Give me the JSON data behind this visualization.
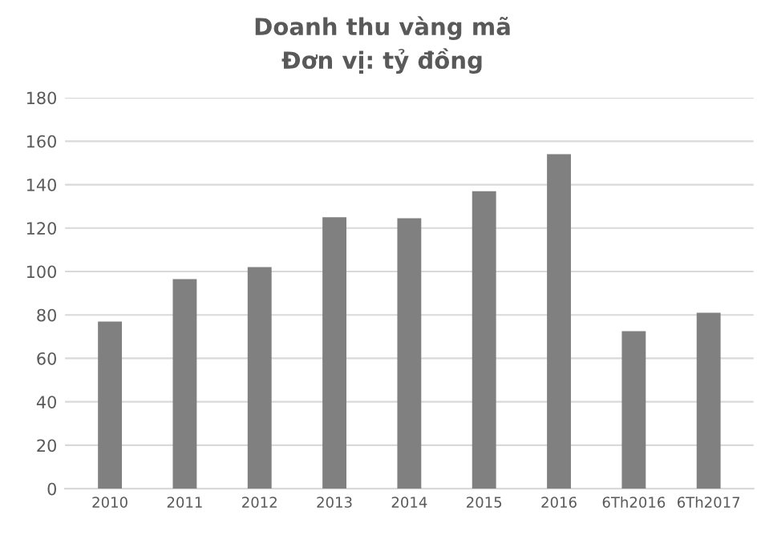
{
  "chart_data": {
    "type": "bar",
    "title": "Doanh thu vàng mã\nĐơn vị: tỷ đồng",
    "categories": [
      "2010",
      "2011",
      "2012",
      "2013",
      "2014",
      "2015",
      "2016",
      "6Th2016",
      "6Th2017"
    ],
    "values": [
      77,
      96.5,
      102,
      125,
      124.5,
      137,
      154,
      72.5,
      81
    ],
    "color": "#808080",
    "ylim": [
      0,
      180
    ],
    "yticks": [
      0,
      20,
      40,
      60,
      80,
      100,
      120,
      140,
      160,
      180
    ],
    "grid": "y"
  }
}
